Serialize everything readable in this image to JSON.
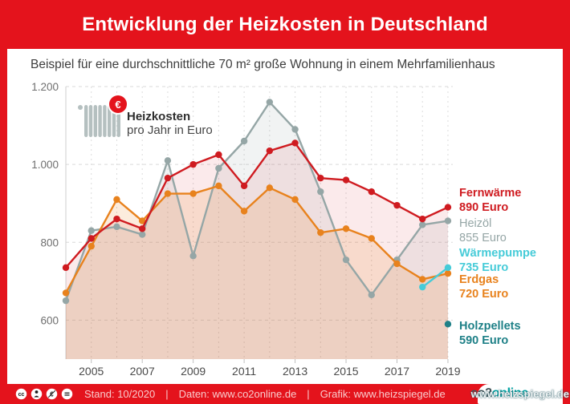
{
  "header": {
    "title": "Entwicklung der Heizkosten in Deutschland"
  },
  "subtitle": "Beispiel für eine durchschnittliche 70 m² große Wohnung in einem Mehrfamilienhaus",
  "unit_legend": {
    "euro_symbol": "€",
    "title": "Heizkosten",
    "subtitle": "pro Jahr in Euro"
  },
  "chart_data": {
    "type": "line",
    "x_start": 2004,
    "x_end": 2019,
    "x_tick_labels": [
      "2005",
      "2007",
      "2009",
      "2011",
      "2013",
      "2015",
      "2017",
      "2019"
    ],
    "y_ticks": [
      600,
      800,
      1000,
      1200
    ],
    "y_tick_labels": [
      "600",
      "800",
      "1.000",
      "1.200"
    ],
    "ylim": [
      500,
      1200
    ],
    "grid": "dashed",
    "legend_position": "right",
    "series": [
      {
        "name": "Fernwärme",
        "end_label": "890 Euro",
        "color": "#cf1b20",
        "fill": "rgba(207,27,32,0.09)",
        "values": [
          735,
          810,
          860,
          835,
          965,
          1000,
          1025,
          945,
          1035,
          1055,
          965,
          960,
          930,
          895,
          860,
          890
        ]
      },
      {
        "name": "Heizöl",
        "end_label": "855 Euro",
        "color": "#95a6a6",
        "fill": "rgba(149,166,166,0.13)",
        "values": [
          650,
          830,
          840,
          820,
          1010,
          765,
          990,
          1060,
          1160,
          1090,
          930,
          755,
          665,
          755,
          845,
          855
        ]
      },
      {
        "name": "Wärmepumpe",
        "end_label": "735 Euro",
        "color": "#46cbd8",
        "fill": null,
        "values": [
          null,
          null,
          null,
          null,
          null,
          null,
          null,
          null,
          null,
          null,
          null,
          null,
          null,
          null,
          685,
          735
        ]
      },
      {
        "name": "Erdgas",
        "end_label": "720 Euro",
        "color": "#e8821d",
        "fill": "rgba(232,130,29,0.15)",
        "values": [
          670,
          790,
          910,
          855,
          925,
          925,
          945,
          880,
          940,
          910,
          825,
          835,
          810,
          745,
          705,
          720
        ]
      },
      {
        "name": "Holzpellets",
        "end_label": "590 Euro",
        "color": "#1e8087",
        "fill": null,
        "values": [
          null,
          null,
          null,
          null,
          null,
          null,
          null,
          null,
          null,
          null,
          null,
          null,
          null,
          null,
          null,
          590
        ]
      }
    ]
  },
  "footer": {
    "stand": "Stand: 10/2020",
    "separator": "|",
    "daten": "Daten: www.co2online.de",
    "grafik": "Grafik: www.heizspiegel.de",
    "cc_icons": [
      "cc-icon",
      "attribution-person-icon",
      "nc-euro-crossed-icon",
      "nd-equals-icon"
    ],
    "logo_co2": "co2",
    "logo_online": "online",
    "watermark": "www.heizspiegel.de"
  }
}
